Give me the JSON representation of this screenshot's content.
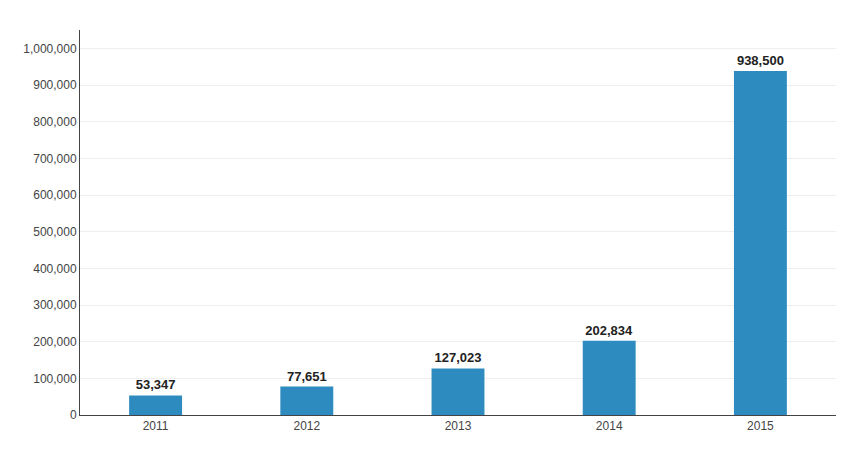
{
  "chart_data": {
    "type": "bar",
    "categories": [
      "2011",
      "2012",
      "2013",
      "2014",
      "2015"
    ],
    "values": [
      53347,
      77651,
      127023,
      202834,
      938500
    ],
    "value_labels": [
      "53,347",
      "77,651",
      "127,023",
      "202,834",
      "938,500"
    ],
    "data_labels": true,
    "color": "#2e8bc0",
    "ylim": [
      0,
      1050000
    ],
    "yticks": [
      0,
      {
        "value": 100000,
        "label": "100,000"
      },
      {
        "value": 200000,
        "label": "200,000"
      },
      {
        "value": 300000,
        "label": "300,000"
      },
      {
        "value": 400000,
        "label": "400,000"
      },
      {
        "value": 500000,
        "label": "500,000"
      },
      {
        "value": 600000,
        "label": "600,000"
      },
      {
        "value": 700000,
        "label": "700,000"
      },
      {
        "value": 800000,
        "label": "800,000"
      },
      {
        "value": 900000,
        "label": "900,000"
      },
      {
        "value": 1000000,
        "label": "1,000,000"
      }
    ],
    "grid": true
  }
}
